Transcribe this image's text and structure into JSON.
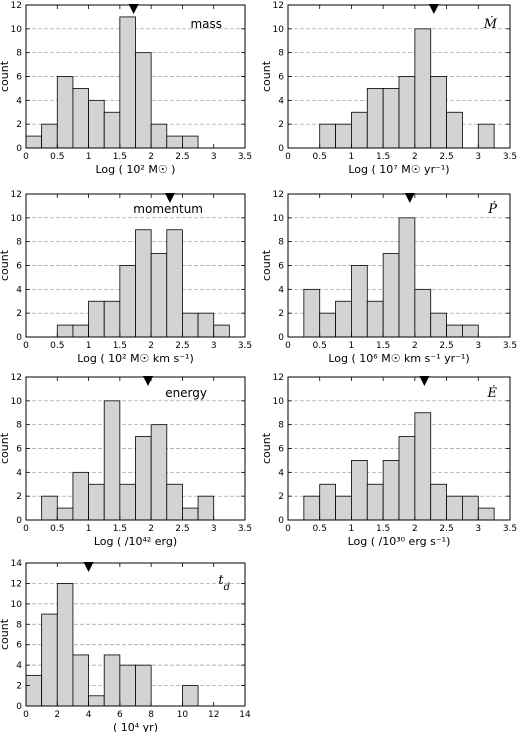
{
  "chart_data": [
    {
      "type": "bar",
      "title": "mass",
      "title_italic": false,
      "xlabel": "Log ( 10² M☉ )",
      "ylabel": "count",
      "xlim": [
        0,
        3.5
      ],
      "ylim": [
        0,
        12
      ],
      "xticks": [
        0,
        0.5,
        1,
        1.5,
        2,
        2.5,
        3,
        3.5
      ],
      "xtick_labels": [
        "0",
        "0.5",
        "1",
        "1.5",
        "2",
        "2.5",
        "3",
        "3.5"
      ],
      "yticks": [
        0,
        2,
        4,
        6,
        8,
        10,
        12
      ],
      "bin_edges": [
        0,
        0.25,
        0.5,
        0.75,
        1.0,
        1.25,
        1.5,
        1.75,
        2.0,
        2.25,
        2.5,
        2.75
      ],
      "values": [
        1,
        2,
        6,
        5,
        4,
        3,
        11,
        8,
        2,
        1,
        1
      ],
      "marker_x": 1.72,
      "grid": "horizontal-dashed"
    },
    {
      "type": "bar",
      "title": "Ṁ",
      "title_italic": true,
      "xlabel": "Log ( 10⁷ M☉ yr⁻¹)",
      "ylabel": "count",
      "xlim": [
        0,
        3.5
      ],
      "ylim": [
        0,
        12
      ],
      "xticks": [
        0,
        0.5,
        1,
        1.5,
        2,
        2.5,
        3,
        3.5
      ],
      "xtick_labels": [
        "0",
        "0.5",
        "1",
        "1.5",
        "2",
        "2.5",
        "3",
        "3.5"
      ],
      "yticks": [
        0,
        2,
        4,
        6,
        8,
        10,
        12
      ],
      "bin_edges": [
        0.5,
        0.75,
        1.0,
        1.25,
        1.5,
        1.75,
        2.0,
        2.25,
        2.5,
        2.75,
        3.0,
        3.25
      ],
      "values": [
        2,
        2,
        3,
        5,
        5,
        6,
        10,
        6,
        3,
        0,
        2
      ],
      "marker_x": 2.3,
      "grid": "horizontal-dashed"
    },
    {
      "type": "bar",
      "title": "momentum",
      "title_italic": false,
      "xlabel": "Log ( 10² M☉ km s⁻¹)",
      "ylabel": "count",
      "xlim": [
        0,
        3.5
      ],
      "ylim": [
        0,
        12
      ],
      "xticks": [
        0,
        0.5,
        1,
        1.5,
        2,
        2.5,
        3,
        3.5
      ],
      "xtick_labels": [
        "0",
        "0.5",
        "1",
        "1.5",
        "2",
        "2.5",
        "3",
        "3.5"
      ],
      "yticks": [
        0,
        2,
        4,
        6,
        8,
        10,
        12
      ],
      "bin_edges": [
        0.5,
        0.75,
        1.0,
        1.25,
        1.5,
        1.75,
        2.0,
        2.25,
        2.5,
        2.75,
        3.0,
        3.25
      ],
      "values": [
        1,
        1,
        3,
        3,
        6,
        9,
        7,
        9,
        2,
        2,
        1
      ],
      "marker_x": 2.3,
      "grid": "horizontal-dashed"
    },
    {
      "type": "bar",
      "title": "Ṗ",
      "title_italic": true,
      "xlabel": "Log ( 10⁶ M☉ km s⁻¹ yr⁻¹)",
      "ylabel": "count",
      "xlim": [
        0,
        3.5
      ],
      "ylim": [
        0,
        12
      ],
      "xticks": [
        0,
        0.5,
        1,
        1.5,
        2,
        2.5,
        3,
        3.5
      ],
      "xtick_labels": [
        "0",
        "0.5",
        "1",
        "1.5",
        "2",
        "2.5",
        "3",
        "3.5"
      ],
      "yticks": [
        0,
        2,
        4,
        6,
        8,
        10,
        12
      ],
      "bin_edges": [
        0.25,
        0.5,
        0.75,
        1.0,
        1.25,
        1.5,
        1.75,
        2.0,
        2.25,
        2.5,
        2.75,
        3.0
      ],
      "values": [
        4,
        2,
        3,
        6,
        3,
        7,
        10,
        4,
        2,
        1,
        1
      ],
      "marker_x": 1.92,
      "grid": "horizontal-dashed"
    },
    {
      "type": "bar",
      "title": "energy",
      "title_italic": false,
      "xlabel": "Log ( /10⁴² erg)",
      "ylabel": "count",
      "xlim": [
        0,
        3.5
      ],
      "ylim": [
        0,
        12
      ],
      "xticks": [
        0,
        0.5,
        1,
        1.5,
        2,
        2.5,
        3,
        3.5
      ],
      "xtick_labels": [
        "0",
        "0.5",
        "1",
        "1.5",
        "2",
        "2.5",
        "3",
        "3.5"
      ],
      "yticks": [
        0,
        2,
        4,
        6,
        8,
        10,
        12
      ],
      "bin_edges": [
        0.25,
        0.5,
        0.75,
        1.0,
        1.25,
        1.5,
        1.75,
        2.0,
        2.25,
        2.5,
        2.75,
        3.0
      ],
      "values": [
        2,
        1,
        4,
        3,
        10,
        3,
        7,
        8,
        3,
        1,
        2
      ],
      "marker_x": 1.95,
      "grid": "horizontal-dashed"
    },
    {
      "type": "bar",
      "title": "Ė",
      "title_italic": true,
      "xlabel": "Log ( /10³⁰ erg s⁻¹)",
      "ylabel": "count",
      "xlim": [
        0,
        3.5
      ],
      "ylim": [
        0,
        12
      ],
      "xticks": [
        0,
        0.5,
        1,
        1.5,
        2,
        2.5,
        3,
        3.5
      ],
      "xtick_labels": [
        "0",
        "0.5",
        "1",
        "1.5",
        "2",
        "2.5",
        "3",
        "3.5"
      ],
      "yticks": [
        0,
        2,
        4,
        6,
        8,
        10,
        12
      ],
      "bin_edges": [
        0.25,
        0.5,
        0.75,
        1.0,
        1.25,
        1.5,
        1.75,
        2.0,
        2.25,
        2.5,
        2.75,
        3.0,
        3.25
      ],
      "values": [
        2,
        3,
        2,
        5,
        3,
        5,
        7,
        9,
        3,
        2,
        2,
        1
      ],
      "marker_x": 2.15,
      "grid": "horizontal-dashed"
    },
    {
      "type": "bar",
      "title": "t_d",
      "title_italic": true,
      "xlabel": "( 10⁴ yr)",
      "ylabel": "count",
      "xlim": [
        0,
        14
      ],
      "ylim": [
        0,
        14
      ],
      "xticks": [
        0,
        2,
        4,
        6,
        8,
        10,
        12,
        14
      ],
      "xtick_labels": [
        "0",
        "2",
        "4",
        "6",
        "8",
        "10",
        "12",
        "14"
      ],
      "yticks": [
        0,
        2,
        4,
        6,
        8,
        10,
        12,
        14
      ],
      "bin_edges": [
        0,
        1,
        2,
        3,
        4,
        5,
        6,
        7,
        8,
        9,
        10,
        11
      ],
      "values": [
        3,
        9,
        12,
        5,
        1,
        5,
        4,
        4,
        0,
        0,
        2
      ],
      "marker_x": 4.0,
      "grid": "horizontal-dashed"
    }
  ],
  "colors": {
    "bar_fill": "#d3d3d3",
    "bar_stroke": "#000000",
    "grid": "#9a9a9a",
    "marker": "#000000"
  }
}
